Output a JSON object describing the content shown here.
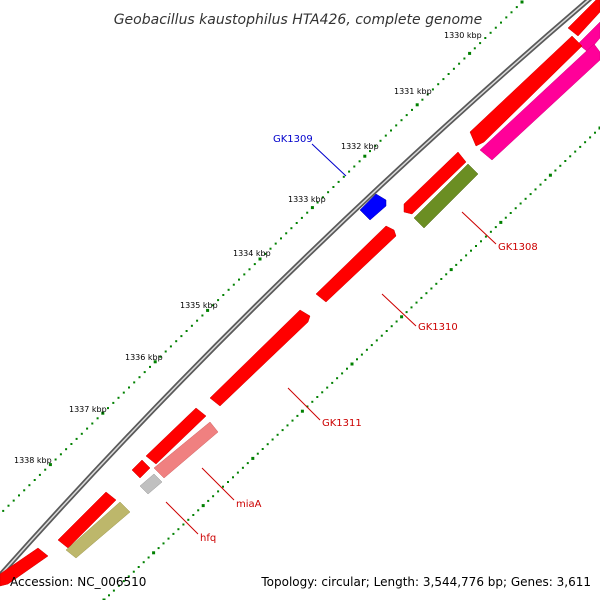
{
  "title": "Geobacillus kaustophilus HTA426, complete genome",
  "footer": {
    "accession": "Accession: NC_006510",
    "summary": "Topology: circular; Length: 3,544,776 bp; Genes: 3,611"
  },
  "scale_labels": [
    "1330 kbp",
    "1331 kbp",
    "1332 kbp",
    "1333 kbp",
    "1334 kbp",
    "1335 kbp",
    "1336 kbp",
    "1337 kbp",
    "1338 kbp"
  ],
  "gene_labels": [
    {
      "text": "GK1309",
      "color": "#0000cc"
    },
    {
      "text": "GK1308",
      "color": "#cc0000"
    },
    {
      "text": "GK1310",
      "color": "#cc0000"
    },
    {
      "text": "GK1311",
      "color": "#cc0000"
    },
    {
      "text": "miaA",
      "color": "#cc0000"
    },
    {
      "text": "hfq",
      "color": "#cc0000"
    }
  ],
  "colors": {
    "backbone": "#8a8a8a",
    "cds": "#ff0000",
    "highlight": "#0000ff",
    "pink": "#ff0099",
    "olive": "#6b8e23",
    "khaki": "#bdb76b",
    "salmon": "#f08080",
    "grey": "#c0c0c0",
    "tick": "#008000"
  }
}
